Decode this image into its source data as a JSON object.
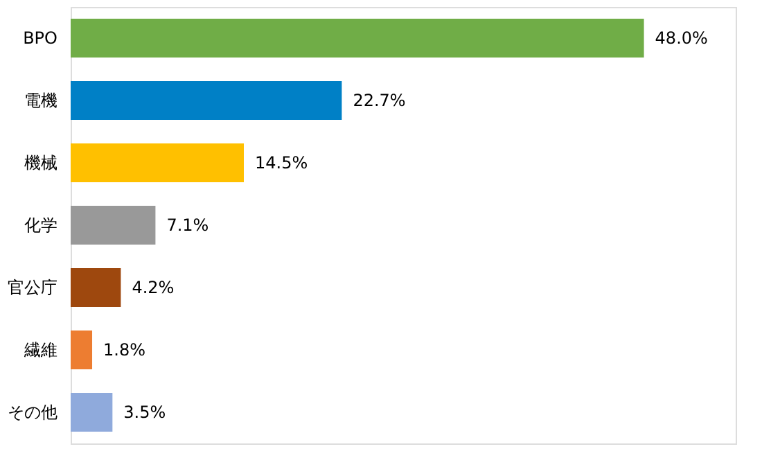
{
  "chart_data": {
    "type": "bar",
    "orientation": "horizontal",
    "categories": [
      "BPO",
      "電機",
      "機械",
      "化学",
      "官公庁",
      "繊維",
      "その他"
    ],
    "values": [
      48.0,
      22.7,
      14.5,
      7.1,
      4.2,
      1.8,
      3.5
    ],
    "colors": [
      "#70ad47",
      "#0080c6",
      "#ffc000",
      "#999999",
      "#9e480e",
      "#ed7d31",
      "#8faadc"
    ],
    "value_labels": [
      "48.0%",
      "22.7%",
      "14.5%",
      "7.1%",
      "4.2%",
      "1.8%",
      "3.5%"
    ],
    "grid": false
  }
}
